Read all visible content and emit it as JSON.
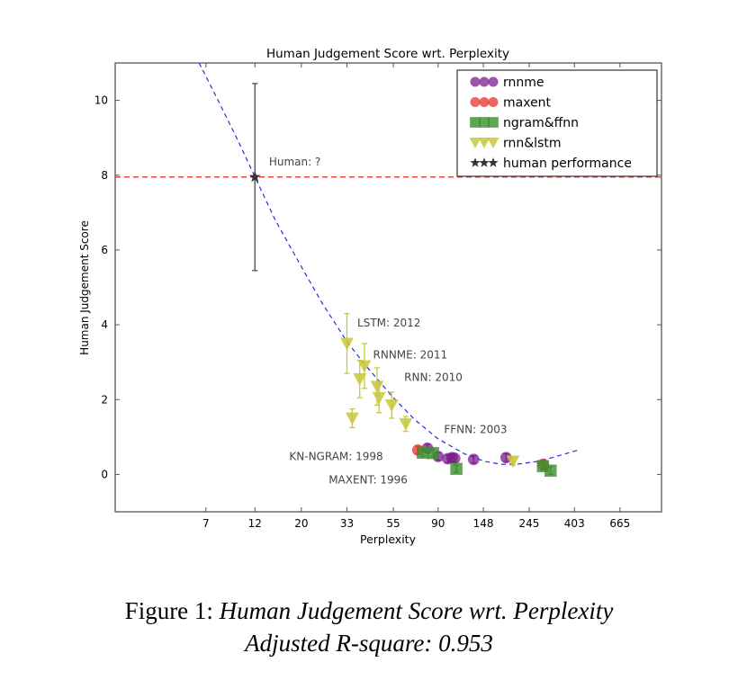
{
  "chart_data": {
    "type": "scatter",
    "title": "Human Judgement Score wrt. Perplexity",
    "xlabel": "Perplexity",
    "ylabel": "Human Judgement Score",
    "xscale": "log",
    "xlim": [
      2.58,
      1050
    ],
    "ylim": [
      -1,
      11
    ],
    "xticks": [
      7,
      12,
      20,
      33,
      55,
      90,
      148,
      245,
      403,
      665
    ],
    "yticks": [
      0,
      2,
      4,
      6,
      8,
      10
    ],
    "grid": false,
    "legend_position": "top-right",
    "series": [
      {
        "name": "rnnme",
        "marker": "circle",
        "color": "#7b1f8f",
        "points": [
          {
            "x": 80,
            "y": 0.7,
            "err": 0.1
          },
          {
            "x": 90,
            "y": 0.48,
            "err": 0.1
          },
          {
            "x": 100,
            "y": 0.42,
            "err": 0.1
          },
          {
            "x": 105,
            "y": 0.45,
            "err": 0.1
          },
          {
            "x": 108,
            "y": 0.43,
            "err": 0.1
          },
          {
            "x": 133,
            "y": 0.4,
            "err": 0.1
          },
          {
            "x": 190,
            "y": 0.45,
            "err": 0.1
          }
        ]
      },
      {
        "name": "maxent",
        "marker": "circle",
        "color": "#e8302a",
        "points": [
          {
            "x": 72,
            "y": 0.65,
            "err": 0.1
          },
          {
            "x": 285,
            "y": 0.27,
            "err": 0.1
          }
        ]
      },
      {
        "name": "ngram&ffnn",
        "marker": "square",
        "color": "#3a8f2a",
        "points": [
          {
            "x": 76,
            "y": 0.58,
            "err": 0.1
          },
          {
            "x": 85,
            "y": 0.57,
            "err": 0.1
          },
          {
            "x": 110,
            "y": 0.15,
            "err": 0.1
          },
          {
            "x": 285,
            "y": 0.22,
            "err": 0.1
          },
          {
            "x": 310,
            "y": 0.1,
            "err": 0.1
          }
        ]
      },
      {
        "name": "rnn&lstm",
        "marker": "triangle-down",
        "color": "#c8c83a",
        "points": [
          {
            "x": 33,
            "y": 3.5,
            "err": 0.8
          },
          {
            "x": 38,
            "y": 2.55,
            "err": 0.5
          },
          {
            "x": 40,
            "y": 2.9,
            "err": 0.6
          },
          {
            "x": 46,
            "y": 2.35,
            "err": 0.5
          },
          {
            "x": 47,
            "y": 2.05,
            "err": 0.4
          },
          {
            "x": 54,
            "y": 1.85,
            "err": 0.35
          },
          {
            "x": 35,
            "y": 1.5,
            "err": 0.25
          },
          {
            "x": 63,
            "y": 1.35,
            "err": 0.2
          },
          {
            "x": 205,
            "y": 0.35,
            "err": 0.1
          }
        ]
      },
      {
        "name": "human performance",
        "marker": "star",
        "color": "#333333",
        "points": [
          {
            "x": 12,
            "y": 7.95,
            "err": 2.5
          }
        ]
      }
    ],
    "reference_lines": [
      {
        "type": "horizontal",
        "y": 7.95,
        "color": "#e8302a",
        "style": "dashed"
      }
    ],
    "fit_curve": {
      "style": "dashed",
      "color": "#1f2fe8",
      "description": "quadratic fit in log(perplexity)",
      "points": [
        [
          6.5,
          11
        ],
        [
          8,
          10.0
        ],
        [
          10,
          8.9
        ],
        [
          12,
          7.95
        ],
        [
          15,
          6.8
        ],
        [
          20,
          5.55
        ],
        [
          25,
          4.6
        ],
        [
          33,
          3.55
        ],
        [
          40,
          2.95
        ],
        [
          55,
          2.05
        ],
        [
          70,
          1.45
        ],
        [
          90,
          0.95
        ],
        [
          120,
          0.55
        ],
        [
          150,
          0.35
        ],
        [
          180,
          0.27
        ],
        [
          220,
          0.28
        ],
        [
          270,
          0.35
        ],
        [
          330,
          0.48
        ],
        [
          420,
          0.65
        ]
      ]
    },
    "annotations": [
      {
        "text": "Human: ?",
        "x": 14,
        "y": 8.35
      },
      {
        "text": "LSTM: 2012",
        "x": 37,
        "y": 4.05
      },
      {
        "text": "RNNME: 2011",
        "x": 44,
        "y": 3.2
      },
      {
        "text": "RNN: 2010",
        "x": 62,
        "y": 2.6
      },
      {
        "text": "FFNN: 2003",
        "x": 96,
        "y": 1.2
      },
      {
        "text": "KN-NGRAM: 1998",
        "x": 17.5,
        "y": 0.48
      },
      {
        "text": "MAXENT: 1996",
        "x": 27,
        "y": -0.15
      }
    ]
  },
  "caption": {
    "prefix": "Figure 1: ",
    "title": "Human Judgement Score wrt. Perplexity",
    "line2": "Adjusted R-square: 0.953"
  }
}
